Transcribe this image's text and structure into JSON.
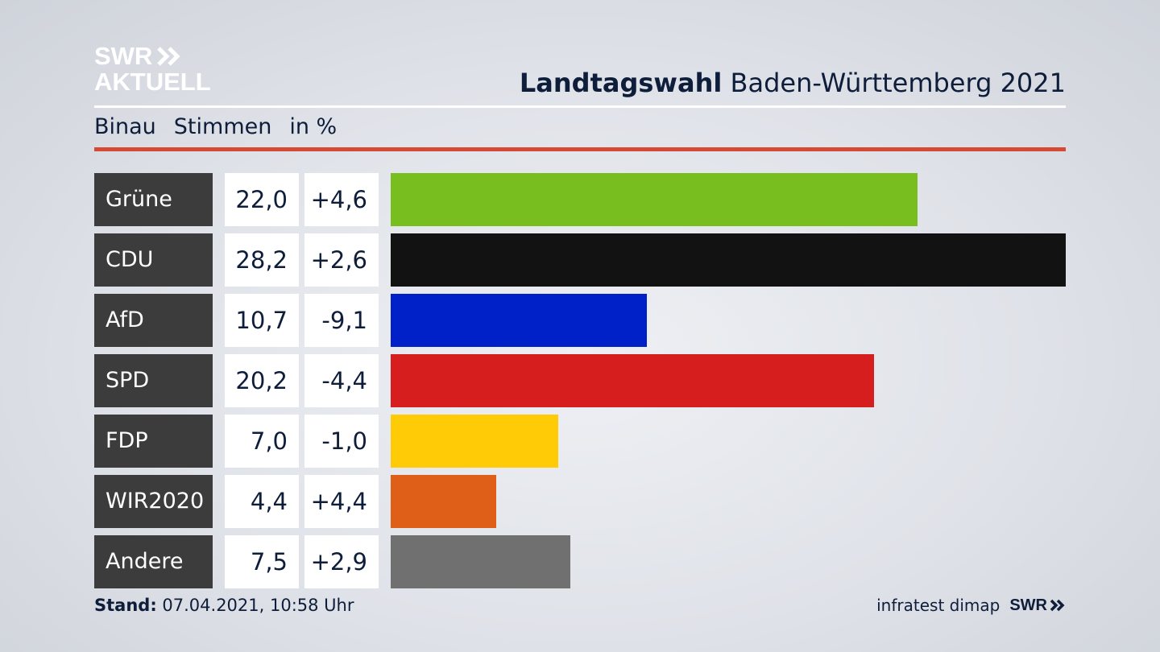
{
  "logo": {
    "line1": "SWR",
    "line2": "AKTUELL"
  },
  "title": {
    "bold": "Landtagswahl",
    "rest": " Baden-Württemberg 2021"
  },
  "subtitle": {
    "place": "Binau",
    "measure": "Stimmen",
    "unit": "in %"
  },
  "chart_data": {
    "type": "bar",
    "categories": [
      "Grüne",
      "CDU",
      "AfD",
      "SPD",
      "FDP",
      "WIR2020",
      "Andere"
    ],
    "values": [
      22.0,
      28.2,
      10.7,
      20.2,
      7.0,
      4.4,
      7.5
    ],
    "values_label": [
      "22,0",
      "28,2",
      "10,7",
      "20,2",
      "7,0",
      "4,4",
      "7,5"
    ],
    "diffs": [
      4.6,
      2.6,
      -9.1,
      -4.4,
      -1.0,
      4.4,
      2.9
    ],
    "diffs_label": [
      "+4,6",
      "+2,6",
      "-9,1",
      "-4,4",
      "-1,0",
      "+4,4",
      "+2,9"
    ],
    "colors": [
      "#78be1e",
      "#121212",
      "#0020c8",
      "#d61e1e",
      "#fecb06",
      "#e05f18",
      "#707070"
    ],
    "xlim": [
      0,
      28.2
    ]
  },
  "footer": {
    "stand_label": "Stand:",
    "stand_value": " 07.04.2021, 10:58 Uhr",
    "source": "infratest dimap",
    "brand": "SWR"
  }
}
